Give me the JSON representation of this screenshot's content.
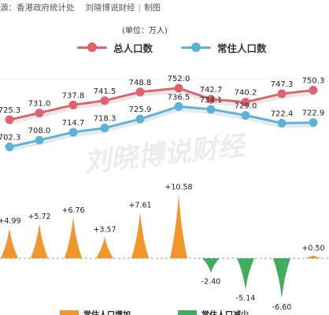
{
  "header": {
    "source_label": "源：香港政府统计处",
    "brand": "刘晓博说财经",
    "role": "制图",
    "separator": "|"
  },
  "watermark": "刘晓博说财经",
  "colors": {
    "total": "#e0626e",
    "resident": "#5cb3d8",
    "increase": "#f0962a",
    "decrease": "#3fae5e"
  },
  "chart_data": [
    {
      "type": "line",
      "unit_label": "(单位：万人)",
      "x_count": 10,
      "ylim": [
        690,
        760
      ],
      "series": [
        {
          "name": "总人口数",
          "color": "#e0626e",
          "values": [
            725.3,
            731.0,
            737.8,
            741.5,
            748.8,
            752.0,
            742.7,
            740.2,
            747.3,
            750.3
          ],
          "labels": [
            "725.3",
            "731.0",
            "737.8",
            "741.5",
            "748.8",
            "752.0",
            "742.7",
            "740.2",
            "747.3",
            "750.3"
          ]
        },
        {
          "name": "常住人口数",
          "color": "#5cb3d8",
          "values": [
            702.3,
            708.0,
            714.7,
            718.3,
            725.9,
            736.5,
            734.1,
            729.0,
            722.4,
            722.9
          ],
          "labels": [
            "702.3",
            "708.0",
            "714.7",
            "718.3",
            "725.9",
            "736.5",
            "734.1",
            "729.0",
            "722.4",
            "722.9"
          ]
        }
      ]
    },
    {
      "type": "bar",
      "x_count": 10,
      "values": [
        4.99,
        5.72,
        6.76,
        3.57,
        7.61,
        10.58,
        -2.4,
        -5.14,
        -6.6,
        0.5
      ],
      "labels": [
        "+4.99",
        "+5.72",
        "+6.76",
        "+3.57",
        "+7.61",
        "+10.58",
        "-2.40",
        "-5.14",
        "-6.60",
        "+0.50"
      ],
      "legend": [
        "常住人口增加",
        "常住人口减少"
      ]
    }
  ]
}
